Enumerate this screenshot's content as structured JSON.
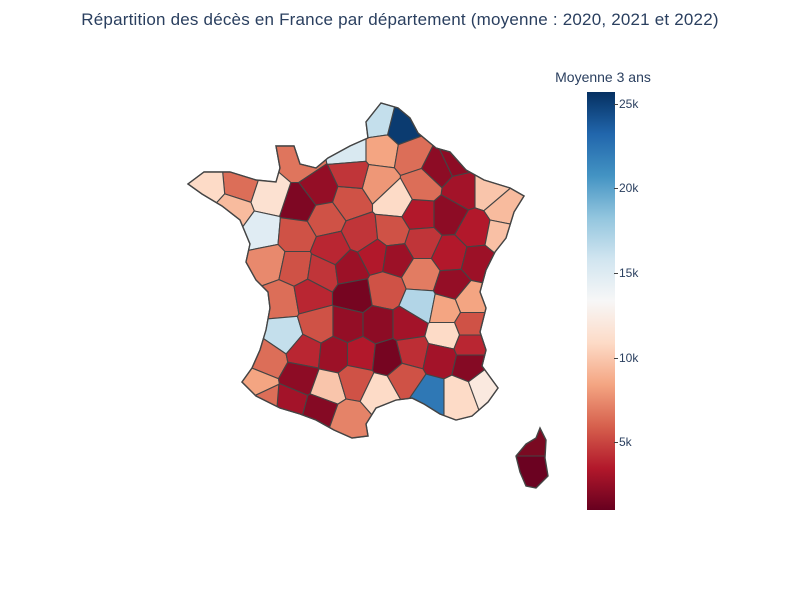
{
  "title": "Répartition des décès en France par département (moyenne : 2020, 2021 et 2022)",
  "colorbar": {
    "title": "Moyenne 3 ans",
    "min": 1000,
    "max": 25700,
    "ticks": [
      {
        "value": 25000,
        "label": "25k"
      },
      {
        "value": 20000,
        "label": "20k"
      },
      {
        "value": 15000,
        "label": "15k"
      },
      {
        "value": 10000,
        "label": "10k"
      },
      {
        "value": 5000,
        "label": "5k"
      }
    ],
    "colorscale": [
      "#67001f",
      "#b2182b",
      "#d6604d",
      "#f4a582",
      "#fddbc7",
      "#f7f7f7",
      "#d1e5f0",
      "#92c5de",
      "#4393c3",
      "#2166ac",
      "#053061"
    ]
  },
  "chart_data": {
    "type": "choropleth",
    "region": "France (départements)",
    "scale": "RdBu",
    "approx_range": [
      1000,
      25700
    ]
  }
}
